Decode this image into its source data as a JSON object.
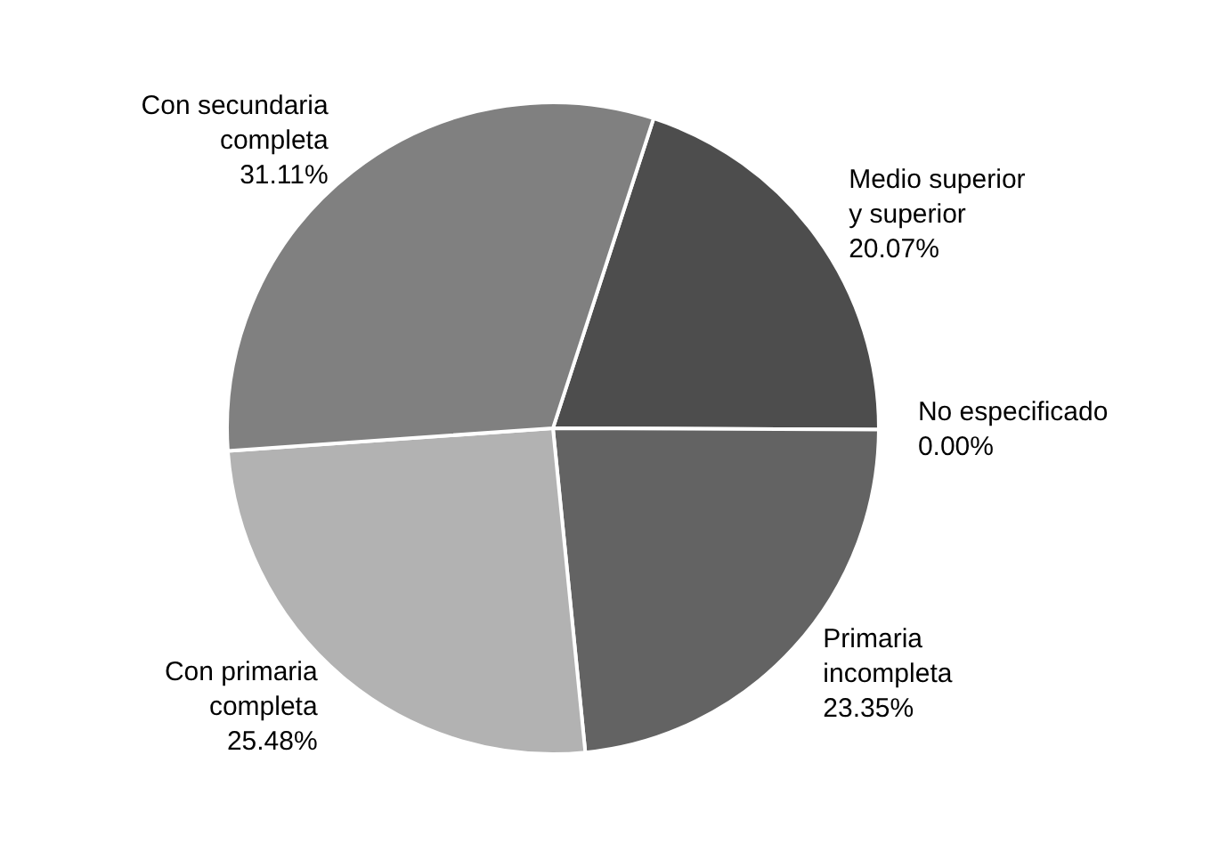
{
  "chart_data": {
    "type": "pie",
    "categories": [
      "Medio superior y superior",
      "No especificado",
      "Primaria incompleta",
      "Con primaria completa",
      "Con secundaria completa"
    ],
    "values": [
      20.07,
      0,
      23.35,
      25.48,
      31.11
    ],
    "value_labels": [
      "20.07%",
      "0.00%",
      "23.35%",
      "25.48%",
      "31.11%"
    ],
    "colors": [
      "#4d4d4d",
      "#999999",
      "#636363",
      "#b2b2b2",
      "#808080"
    ]
  }
}
